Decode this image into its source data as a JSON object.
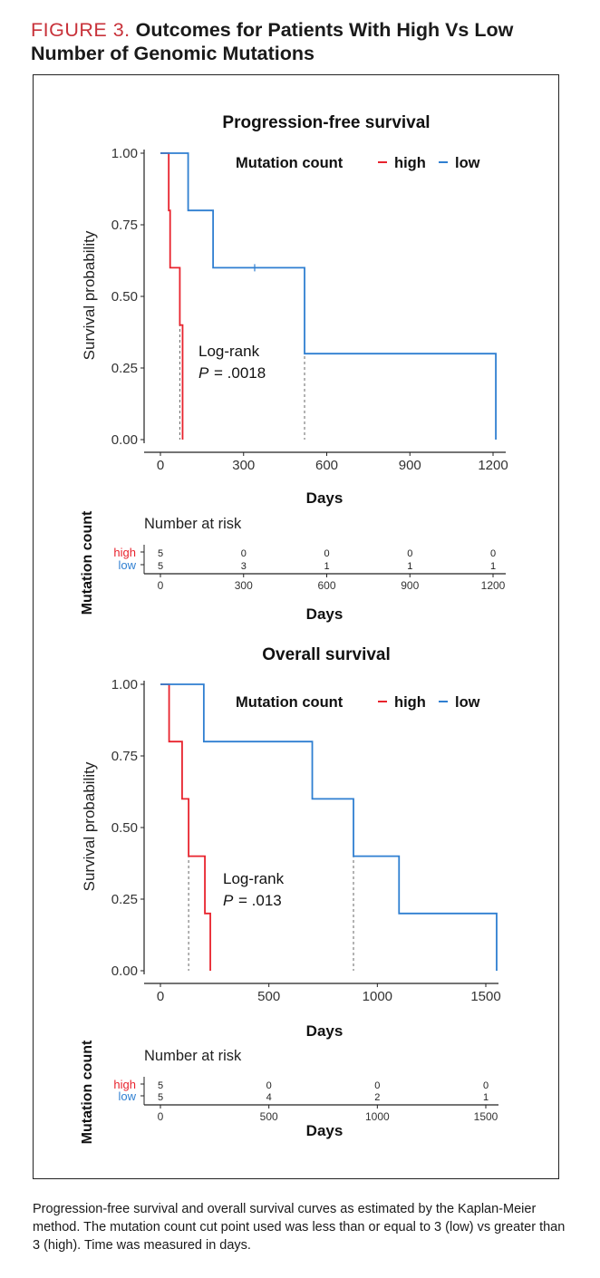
{
  "figure": {
    "label": "FIGURE 3.",
    "heading": "Outcomes for Patients With High Vs Low Number of Genomic Mutations",
    "caption": "Progression-free survival and overall survival curves as estimated by the Kaplan-Meier method. The mutation count cut point used was less than or equal to 3 (low) vs greater than 3 (high). Time was measured in days."
  },
  "colors": {
    "high": "#e8232d",
    "low": "#2f7fd1",
    "dashed": "#666666",
    "label_red": "#c8323a"
  },
  "chart_data": [
    {
      "type": "line",
      "subtype": "kaplan-meier",
      "title": "Progression-free survival",
      "xlabel": "Days",
      "ylabel": "Survival probability",
      "xlim": [
        0,
        1200
      ],
      "ylim": [
        0,
        1
      ],
      "x_ticks": [
        "0",
        "300",
        "600",
        "900",
        "1200"
      ],
      "x_tick_values": [
        0,
        300,
        600,
        900,
        1200
      ],
      "y_ticks": [
        "0.00",
        "0.25",
        "0.50",
        "0.75",
        "1.00"
      ],
      "y_tick_values": [
        0,
        0.25,
        0.5,
        0.75,
        1
      ],
      "legend_title": "Mutation count",
      "legend_position": "top-right",
      "series": [
        {
          "name": "high",
          "steps": [
            [
              0,
              1.0
            ],
            [
              30,
              0.8
            ],
            [
              35,
              0.6
            ],
            [
              70,
              0.4
            ],
            [
              80,
              0.0
            ]
          ],
          "end_x": 80,
          "censor": []
        },
        {
          "name": "low",
          "steps": [
            [
              0,
              1.0
            ],
            [
              100,
              0.8
            ],
            [
              190,
              0.6
            ],
            [
              520,
              0.3
            ],
            [
              1210,
              0.0
            ]
          ],
          "end_x": 1210,
          "censor": [
            [
              340,
              0.6
            ]
          ]
        }
      ],
      "median_lines": [
        70,
        520
      ],
      "annotation": {
        "line1": "Log-rank",
        "p_label": "P",
        "p_value": "= .0018"
      },
      "risk_table": {
        "title": "Number at risk",
        "ylabel": "Mutation count",
        "groups": [
          "high",
          "low"
        ],
        "times": [
          0,
          300,
          600,
          900,
          1200
        ],
        "tick_labels": [
          "0",
          "300",
          "600",
          "900",
          "1200"
        ],
        "high": [
          "5",
          "0",
          "0",
          "0",
          "0"
        ],
        "low": [
          "5",
          "3",
          "1",
          "1",
          "1"
        ],
        "xlabel": "Days"
      }
    },
    {
      "type": "line",
      "subtype": "kaplan-meier",
      "title": "Overall survival",
      "xlabel": "Days",
      "ylabel": "Survival probability",
      "xlim": [
        0,
        1500
      ],
      "ylim": [
        0,
        1
      ],
      "x_ticks": [
        "0",
        "500",
        "1000",
        "1500"
      ],
      "x_tick_values": [
        0,
        500,
        1000,
        1500
      ],
      "y_ticks": [
        "0.00",
        "0.25",
        "0.50",
        "0.75",
        "1.00"
      ],
      "y_tick_values": [
        0,
        0.25,
        0.5,
        0.75,
        1
      ],
      "legend_title": "Mutation count",
      "legend_position": "top-right",
      "series": [
        {
          "name": "high",
          "steps": [
            [
              0,
              1.0
            ],
            [
              40,
              0.8
            ],
            [
              100,
              0.6
            ],
            [
              130,
              0.4
            ],
            [
              205,
              0.2
            ],
            [
              230,
              0.0
            ]
          ],
          "end_x": 230,
          "censor": []
        },
        {
          "name": "low",
          "steps": [
            [
              0,
              1.0
            ],
            [
              200,
              0.8
            ],
            [
              700,
              0.6
            ],
            [
              890,
              0.4
            ],
            [
              1100,
              0.2
            ],
            [
              1550,
              0.0
            ]
          ],
          "end_x": 1550,
          "censor": []
        }
      ],
      "median_lines": [
        130,
        890
      ],
      "annotation": {
        "line1": "Log-rank",
        "p_label": "P",
        "p_value": "= .013"
      },
      "risk_table": {
        "title": "Number at risk",
        "ylabel": "Mutation count",
        "groups": [
          "high",
          "low"
        ],
        "times": [
          0,
          500,
          1000,
          1500
        ],
        "tick_labels": [
          "0",
          "500",
          "1000",
          "1500"
        ],
        "high": [
          "5",
          "0",
          "0",
          "0"
        ],
        "low": [
          "5",
          "4",
          "2",
          "1"
        ],
        "xlabel": "Days"
      }
    }
  ]
}
